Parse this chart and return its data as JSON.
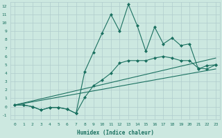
{
  "xlabel": "Humidex (Indice chaleur)",
  "xlim": [
    -0.5,
    23.5
  ],
  "ylim": [
    -1.5,
    12.5
  ],
  "yticks": [
    -1,
    0,
    1,
    2,
    3,
    4,
    5,
    6,
    7,
    8,
    9,
    10,
    11,
    12
  ],
  "xticks": [
    0,
    1,
    2,
    3,
    4,
    5,
    6,
    7,
    8,
    9,
    10,
    11,
    12,
    13,
    14,
    15,
    16,
    17,
    18,
    19,
    20,
    21,
    22,
    23
  ],
  "bg_color": "#cce8e0",
  "grid_color": "#b0cccc",
  "line_color": "#1a7060",
  "lines": [
    {
      "x": [
        0,
        1,
        2,
        3,
        4,
        5,
        6,
        7,
        8,
        9,
        10,
        11,
        12,
        13,
        14,
        15,
        16,
        17,
        18,
        19,
        20,
        21,
        22,
        23
      ],
      "y": [
        0.2,
        0.2,
        0.0,
        -0.4,
        -0.1,
        -0.1,
        -0.3,
        -0.8,
        4.2,
        6.5,
        8.8,
        11.0,
        9.0,
        12.2,
        9.7,
        6.6,
        9.5,
        7.5,
        8.2,
        7.3,
        7.5,
        4.5,
        4.9,
        5.0
      ],
      "marker": "D",
      "markersize": 2.0,
      "lw": 0.8
    },
    {
      "x": [
        0,
        1,
        2,
        3,
        4,
        5,
        6,
        7,
        8,
        9,
        10,
        11,
        12,
        13,
        14,
        15,
        16,
        17,
        18,
        19,
        20,
        21,
        22,
        23
      ],
      "y": [
        0.2,
        0.2,
        0.0,
        -0.4,
        -0.1,
        -0.1,
        -0.3,
        -0.8,
        1.1,
        2.5,
        3.2,
        4.0,
        5.2,
        5.5,
        5.5,
        5.5,
        5.8,
        6.0,
        5.8,
        5.5,
        5.5,
        4.6,
        4.5,
        5.0
      ],
      "marker": "D",
      "markersize": 2.0,
      "lw": 0.8
    },
    {
      "x": [
        0,
        23
      ],
      "y": [
        0.2,
        5.8
      ],
      "marker": null,
      "markersize": 0,
      "lw": 0.8
    },
    {
      "x": [
        0,
        23
      ],
      "y": [
        0.2,
        4.5
      ],
      "marker": null,
      "markersize": 0,
      "lw": 0.8
    }
  ]
}
